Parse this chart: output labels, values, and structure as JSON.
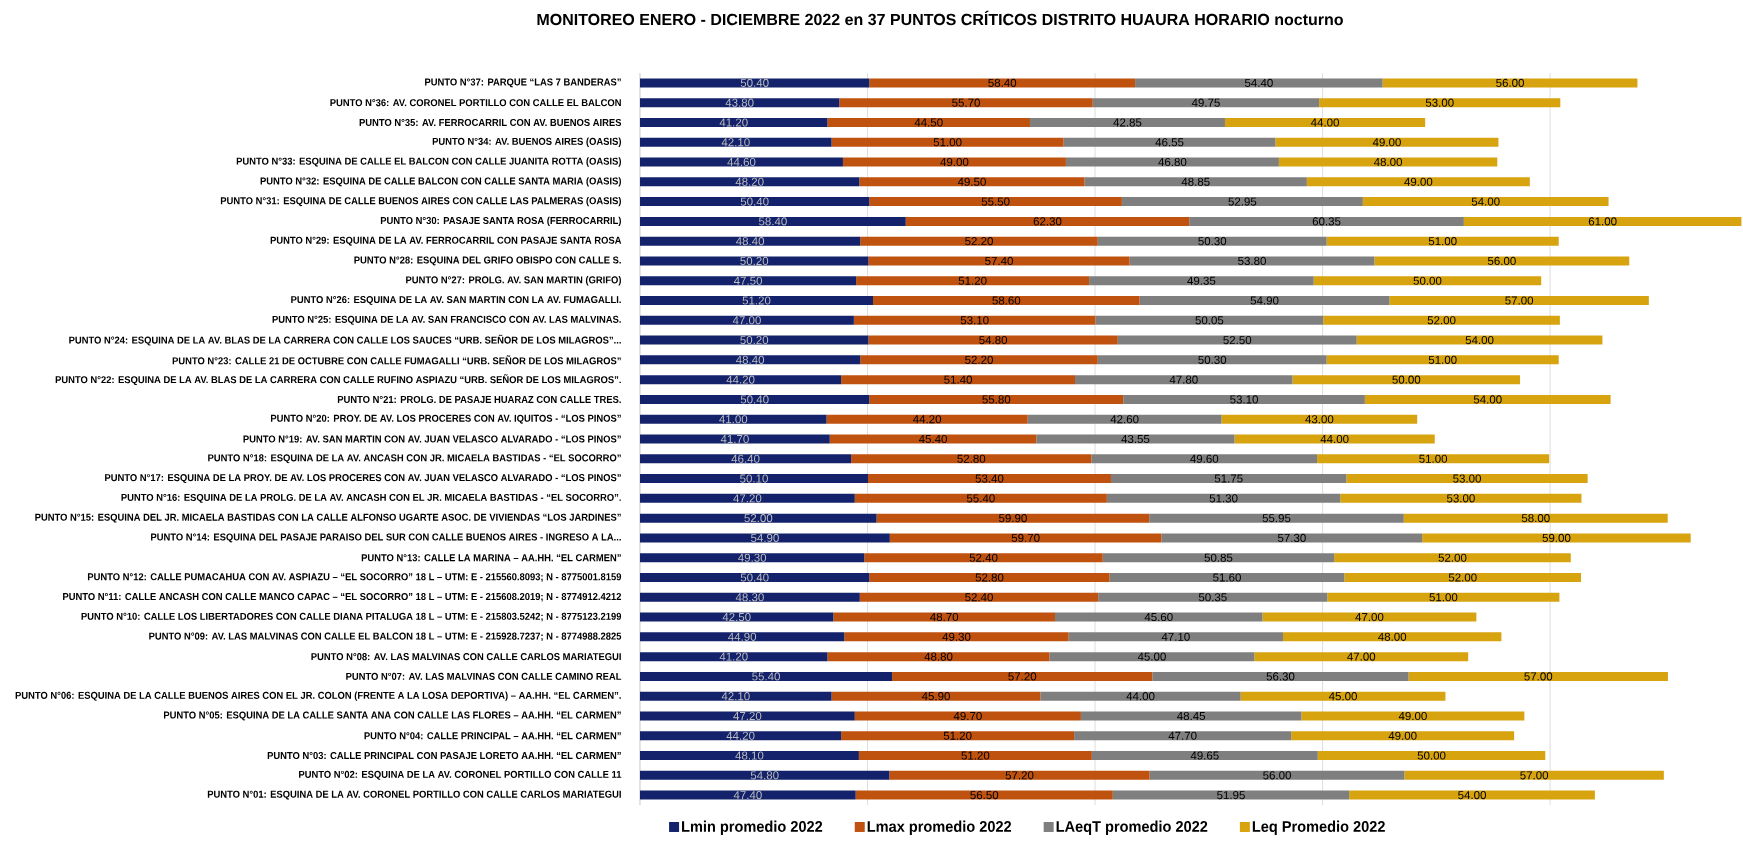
{
  "chart_data": {
    "type": "bar",
    "orientation": "horizontal",
    "stacked": true,
    "title": "MONITOREO ENERO - DICIEMBRE 2022 en 37 PUNTOS CRÍTICOS DISTRITO HUAURA HORARIO nocturno",
    "categories": [
      "PUNTO N°37: PARQUE “LAS 7 BANDERAS”",
      "PUNTO N°36: AV. CORONEL PORTILLO CON CALLE EL BALCON",
      "PUNTO N°35: AV. FERROCARRIL CON AV. BUENOS AIRES",
      "PUNTO N°34: AV. BUENOS AIRES (OASIS)",
      "PUNTO N°33: ESQUINA DE CALLE EL BALCON CON CALLE JUANITA ROTTA (OASIS)",
      "PUNTO N°32: ESQUINA DE CALLE BALCON CON CALLE SANTA MARIA (OASIS)",
      "PUNTO N°31: ESQUINA DE CALLE BUENOS AIRES CON CALLE LAS PALMERAS (OASIS)",
      "PUNTO N°30: PASAJE SANTA ROSA (FERROCARRIL)",
      "PUNTO N°29: ESQUINA DE LA AV. FERROCARRIL CON PASAJE SANTA ROSA",
      "PUNTO N°28: ESQUINA DEL GRIFO OBISPO CON CALLE S.",
      "PUNTO N°27: PROLG. AV. SAN MARTIN (GRIFO)",
      "PUNTO N°26: ESQUINA DE LA AV. SAN MARTIN CON LA AV. FUMAGALLI.",
      "PUNTO N°25: ESQUINA DE LA AV. SAN FRANCISCO CON AV. LAS MALVINAS.",
      "PUNTO N°24: ESQUINA DE LA AV. BLAS DE LA CARRERA CON CALLE LOS SAUCES “URB. SEÑOR DE LOS MILAGROS”...",
      "PUNTO N°23: CALLE 21 DE OCTUBRE CON CALLE FUMAGALLI “URB. SEÑOR DE LOS MILAGROS”",
      "PUNTO N°22: ESQUINA DE LA AV. BLAS DE LA CARRERA CON CALLE RUFINO ASPIAZU “URB. SEÑOR DE LOS MILAGROS”.",
      "PUNTO N°21: PROLG. DE PASAJE HUARAZ CON CALLE TRES.",
      "PUNTO N°20: PROY. DE AV. LOS PROCERES CON AV. IQUITOS - “LOS PINOS”",
      "PUNTO N°19: AV. SAN MARTIN CON AV. JUAN VELASCO ALVARADO - “LOS PINOS”",
      "PUNTO N°18: ESQUINA DE LA AV. ANCASH CON JR. MICAELA BASTIDAS - “EL SOCORRO”",
      "PUNTO N°17: ESQUINA DE LA PROY. DE AV. LOS PROCERES CON AV. JUAN VELASCO ALVARADO - “LOS PINOS”",
      "PUNTO N°16: ESQUINA DE LA PROLG. DE LA AV. ANCASH CON EL JR. MICAELA BASTIDAS - “EL SOCORRO”.",
      "PUNTO N°15: ESQUINA DEL JR. MICAELA BASTIDAS CON LA CALLE ALFONSO UGARTE ASOC. DE VIVIENDAS “LOS JARDINES”",
      "PUNTO N°14: ESQUINA DEL PASAJE PARAISO DEL SUR CON CALLE BUENOS AIRES - INGRESO A LA...",
      "PUNTO N°13: CALLE LA MARINA – AA.HH. “EL CARMEN”",
      "PUNTO N°12: CALLE PUMACAHUA CON AV. ASPIAZU – “EL SOCORRO” 18 L – UTM: E - 215560.8093; N - 8775001.8159",
      "PUNTO N°11: CALLE ANCASH CON CALLE MANCO CAPAC – “EL SOCORRO” 18 L – UTM: E - 215608.2019; N - 8774912.4212",
      "PUNTO N°10: CALLE LOS LIBERTADORES CON CALLE DIANA PITALUGA 18 L – UTM: E - 215803.5242; N - 8775123.2199",
      "PUNTO N°09: AV. LAS MALVINAS CON CALLE EL BALCON 18 L – UTM: E - 215928.7237; N - 8774988.2825",
      "PUNTO N°08: AV. LAS MALVINAS CON CALLE CARLOS MARIATEGUI",
      "PUNTO N°07: AV. LAS MALVINAS CON CALLE CAMINO REAL",
      "PUNTO N°06: ESQUINA DE LA CALLE BUENOS AIRES CON EL JR. COLON (FRENTE A LA LOSA DEPORTIVA) – AA.HH. “EL CARMEN”.",
      "PUNTO N°05: ESQUINA DE LA CALLE SANTA ANA CON CALLE LAS FLORES – AA.HH. “EL CARMEN”",
      "PUNTO N°04: CALLE PRINCIPAL – AA.HH. “EL CARMEN”",
      "PUNTO N°03: CALLE PRINCIPAL CON PASAJE LORETO AA.HH. “EL CARMEN”",
      "PUNTO N°02: ESQUINA DE LA AV. CORONEL PORTILLO CON CALLE 11",
      "PUNTO N°01: ESQUINA DE LA AV. CORONEL PORTILLO CON CALLE CARLOS MARIATEGUI"
    ],
    "series": [
      {
        "name": "Lmin promedio 2022",
        "color": "#13226a",
        "values": [
          50.4,
          43.8,
          41.2,
          42.1,
          44.6,
          48.2,
          50.4,
          58.4,
          48.4,
          50.2,
          47.5,
          51.2,
          47.0,
          50.2,
          48.4,
          44.2,
          50.4,
          41.0,
          41.7,
          46.4,
          50.1,
          47.2,
          52.0,
          54.9,
          49.3,
          50.4,
          48.3,
          42.5,
          44.9,
          41.2,
          55.4,
          42.1,
          47.2,
          44.2,
          48.1,
          54.8,
          47.4
        ],
        "value_labels": [
          "50.40",
          "43.80",
          "41.20",
          "42.10",
          "44.60",
          "48.20",
          "50.40",
          "58.40",
          "48.40",
          "50.20",
          "47.50",
          "51.20",
          "47.00",
          "50.20",
          "48.40",
          "44.20",
          "50.40",
          "41.00",
          "41.70",
          "46.40",
          "50.10",
          "47.20",
          "52.00",
          "54.90",
          "49.30",
          "50.40",
          "48.30",
          "42.50",
          "44.90",
          "41.20",
          "55.40",
          "42.10",
          "47.20",
          "44.20",
          "48.10",
          "54.80",
          "47.40"
        ]
      },
      {
        "name": "Lmax promedio 2022",
        "color": "#c0520f",
        "values": [
          58.4,
          55.7,
          44.5,
          51.0,
          49.0,
          49.5,
          55.5,
          62.3,
          52.2,
          57.4,
          51.2,
          58.6,
          53.1,
          54.8,
          52.2,
          51.4,
          55.8,
          44.2,
          45.4,
          52.8,
          53.4,
          55.4,
          59.9,
          59.7,
          52.4,
          52.8,
          52.4,
          48.7,
          49.3,
          48.8,
          57.2,
          45.9,
          49.7,
          51.2,
          51.2,
          57.2,
          56.5
        ],
        "value_labels": [
          "58.40",
          "55.70",
          "44.50",
          "51.00",
          "49.00",
          "49.50",
          "55.50",
          "62.30",
          "52.20",
          "57.40",
          "51.20",
          "58.60",
          "53.10",
          "54.80",
          "52.20",
          "51.40",
          "55.80",
          "44.20",
          "45.40",
          "52.80",
          "53.40",
          "55.40",
          "59.90",
          "59.70",
          "52.40",
          "52.80",
          "52.40",
          "48.70",
          "49.30",
          "48.80",
          "57.20",
          "45.90",
          "49.70",
          "51.20",
          "51.20",
          "57.20",
          "56.50"
        ]
      },
      {
        "name": "LAeqT promedio 2022",
        "color": "#7f7f7f",
        "values": [
          54.4,
          49.75,
          42.85,
          46.55,
          46.8,
          48.85,
          52.95,
          60.35,
          50.3,
          53.8,
          49.35,
          54.9,
          50.05,
          52.5,
          50.3,
          47.8,
          53.1,
          42.6,
          43.55,
          49.6,
          51.75,
          51.3,
          55.95,
          57.3,
          50.85,
          51.6,
          50.35,
          45.6,
          47.1,
          45.0,
          56.3,
          44.0,
          48.45,
          47.7,
          49.65,
          56.0,
          51.95
        ],
        "value_labels": [
          "54.40",
          "49.75",
          "42.85",
          "46.55",
          "46.80",
          "48.85",
          "52.95",
          "60.35",
          "50.30",
          "53.80",
          "49.35",
          "54.90",
          "50.05",
          "52.50",
          "50.30",
          "47.80",
          "53.10",
          "42.60",
          "43.55",
          "49.60",
          "51.75",
          "51.30",
          "55.95",
          "57.30",
          "50.85",
          "51.60",
          "50.35",
          "45.60",
          "47.10",
          "45.00",
          "56.30",
          "44.00",
          "48.45",
          "47.70",
          "49.65",
          "56.00",
          "51.95"
        ]
      },
      {
        "name": "Leq Promedio 2022",
        "color": "#d7a30f",
        "values": [
          56.0,
          53.0,
          44.0,
          49.0,
          48.0,
          49.0,
          54.0,
          61.0,
          51.0,
          56.0,
          50.0,
          57.0,
          52.0,
          54.0,
          51.0,
          50.0,
          54.0,
          43.0,
          44.0,
          51.0,
          53.0,
          53.0,
          58.0,
          59.0,
          52.0,
          52.0,
          51.0,
          47.0,
          48.0,
          47.0,
          57.0,
          45.0,
          49.0,
          49.0,
          50.0,
          57.0,
          54.0
        ],
        "value_labels": [
          "56.00",
          "53.00",
          "44.00",
          "49.00",
          "48.00",
          "49.00",
          "54.00",
          "61.00",
          "51.00",
          "56.00",
          "50.00",
          "57.00",
          "52.00",
          "54.00",
          "51.00",
          "50.00",
          "54.00",
          "43.00",
          "44.00",
          "51.00",
          "53.00",
          "53.00",
          "58.00",
          "59.00",
          "52.00",
          "52.00",
          "51.00",
          "47.00",
          "48.00",
          "47.00",
          "57.00",
          "45.00",
          "49.00",
          "49.00",
          "50.00",
          "57.00",
          "54.00"
        ]
      }
    ],
    "xlim": [
      0,
      242.4
    ],
    "xticks": [
      {
        "value": 50,
        "label": null
      },
      {
        "value": 100,
        "label": null
      },
      {
        "value": 150,
        "label": null
      },
      {
        "value": 200,
        "label": null
      }
    ],
    "grid": "x",
    "legend": "bottom",
    "tick_labels": "y"
  }
}
